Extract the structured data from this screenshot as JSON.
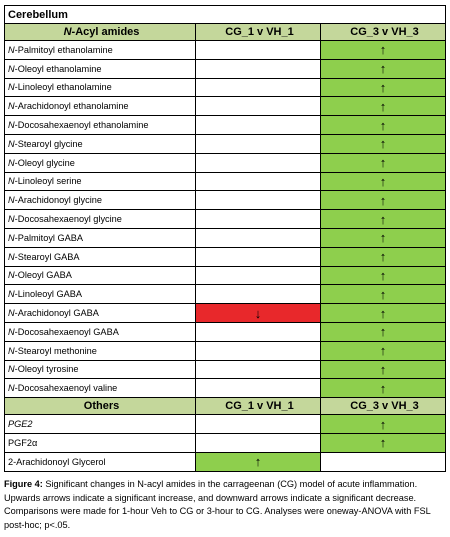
{
  "title": "Cerebellum",
  "sections": [
    {
      "header": {
        "label_prefix": "N",
        "label_rest": "-Acyl amides",
        "col2": "CG_1 v VH_1",
        "col3": "CG_3 v VH_3"
      },
      "rows": [
        {
          "prefix": "N",
          "name": "-Palmitoyl ethanolamine",
          "c2": "",
          "c3": "↑"
        },
        {
          "prefix": "N",
          "name": "-Oleoyl ethanolamine",
          "c2": "",
          "c3": "↑"
        },
        {
          "prefix": "N",
          "name": "-Linoleoyl ethanolamine",
          "c2": "",
          "c3": "↑"
        },
        {
          "prefix": "N",
          "name": "-Arachidonoyl ethanolamine",
          "c2": "",
          "c3": "↑"
        },
        {
          "prefix": "N",
          "name": "-Docosahexaenoyl ethanolamine",
          "c2": "",
          "c3": "↑"
        },
        {
          "prefix": "N",
          "name": "-Stearoyl glycine",
          "c2": "",
          "c3": "↑"
        },
        {
          "prefix": "N",
          "name": "-Oleoyl glycine",
          "c2": "",
          "c3": "↑"
        },
        {
          "prefix": "N",
          "name": "-Linoleoyl serine",
          "c2": "",
          "c3": "↑"
        },
        {
          "prefix": "N",
          "name": "-Arachidonoyl glycine",
          "c2": "",
          "c3": "↑"
        },
        {
          "prefix": "N",
          "name": "-Docosahexaenoyl glycine",
          "c2": "",
          "c3": "↑"
        },
        {
          "prefix": "N",
          "name": "-Palmitoyl GABA",
          "c2": "",
          "c3": "↑"
        },
        {
          "prefix": "N",
          "name": "-Stearoyl GABA",
          "c2": "",
          "c3": "↑"
        },
        {
          "prefix": "N",
          "name": "-Oleoyl GABA",
          "c2": "",
          "c3": "↑"
        },
        {
          "prefix": "N",
          "name": "-Linoleoyl GABA",
          "c2": "",
          "c3": "↑"
        },
        {
          "prefix": "N",
          "name": "-Arachidonoyl GABA",
          "c2": "↓",
          "c3": "↑"
        },
        {
          "prefix": "N",
          "name": "-Docosahexaenoyl GABA",
          "c2": "",
          "c3": "↑"
        },
        {
          "prefix": "N",
          "name": "-Stearoyl methonine",
          "c2": "",
          "c3": "↑"
        },
        {
          "prefix": "N",
          "name": "-Oleoyl tyrosine",
          "c2": "",
          "c3": "↑"
        },
        {
          "prefix": "N",
          "name": "-Docosahexaenoyl valine",
          "c2": "",
          "c3": "↑"
        }
      ]
    },
    {
      "header": {
        "label_prefix": "",
        "label_rest": "Others",
        "col2": "CG_1 v VH_1",
        "col3": "CG_3 v VH_3"
      },
      "rows": [
        {
          "prefix": "",
          "name": "PGE2",
          "c2": "",
          "c3": "↑",
          "italic": true
        },
        {
          "prefix": "",
          "name": "PGF2α",
          "c2": "",
          "c3": "↑"
        },
        {
          "prefix": "",
          "name": "2-Arachidonoyl Glycerol",
          "c2": "↑",
          "c3": ""
        }
      ]
    }
  ],
  "colors": {
    "increase": "#8ecf4d",
    "decrease": "#e8282b",
    "header": "#c4d79b"
  },
  "caption": {
    "label": "Figure 4:",
    "text": " Significant changes in N-acyl amides in the carrageenan (CG) model of acute inflammation.  Upwards arrows indicate a significant increase, and downward arrows indicate a significant decrease.  Comparisons were made for 1-hour Veh to CG or 3-hour to CG. Analyses were oneway-ANOVA  with FSL post-hoc; p<.05."
  }
}
